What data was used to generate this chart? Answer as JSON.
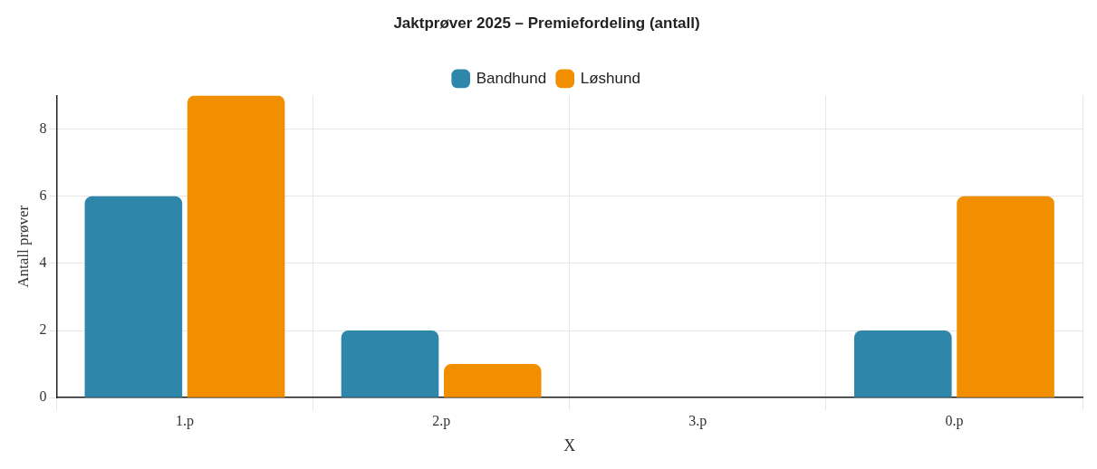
{
  "chart_data": {
    "type": "bar",
    "title": "Jaktprøver 2025 – Premiefordeling (antall)",
    "xlabel": "X",
    "ylabel": "Antall prøver",
    "categories": [
      "1.p",
      "2.p",
      "3.p",
      "0.p"
    ],
    "series": [
      {
        "name": "Bandhund",
        "color": "#2e86ab",
        "values": [
          6,
          2,
          0,
          2
        ]
      },
      {
        "name": "Løshund",
        "color": "#f18f01",
        "values": [
          9,
          1,
          0,
          6
        ]
      }
    ],
    "ylim": [
      0,
      9
    ],
    "yticks": [
      0,
      2,
      4,
      6,
      8
    ],
    "grid": true,
    "legend": "top"
  }
}
